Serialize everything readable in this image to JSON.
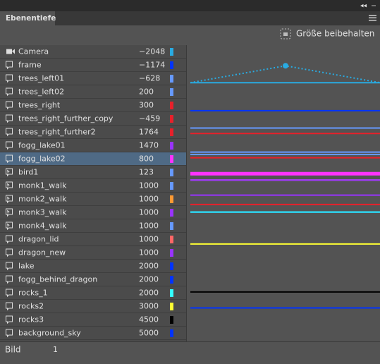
{
  "panel": {
    "tab": "Ebenentiefe",
    "button": "Größe beibehalten",
    "layers": [
      {
        "kind": "camera",
        "name": "Camera",
        "depth": -2048,
        "depth_label": "−2048",
        "color": "#29abe2"
      },
      {
        "kind": "layer",
        "name": "frame",
        "depth": -1174,
        "depth_label": "−1174",
        "color": "#0033ff"
      },
      {
        "kind": "layer",
        "name": "trees_left01",
        "depth": -628,
        "depth_label": "−628",
        "color": "#6699ff"
      },
      {
        "kind": "layer",
        "name": "trees_left02",
        "depth": 200,
        "color": "#6699ff"
      },
      {
        "kind": "layer",
        "name": "trees_right",
        "depth": 300,
        "color": "#e8202a"
      },
      {
        "kind": "layer",
        "name": "trees_right_further_copy",
        "depth": -459,
        "depth_label": "−459",
        "color": "#e8202a"
      },
      {
        "kind": "layer",
        "name": "trees_right_further2",
        "depth": 1764,
        "color": "#e8202a"
      },
      {
        "kind": "layer",
        "name": "fogg_lake01",
        "depth": 1470,
        "color": "#9933ff"
      },
      {
        "kind": "layer",
        "name": "fogg_lake02",
        "depth": 800,
        "color": "#ff33ff",
        "selected": true
      },
      {
        "kind": "symbol",
        "name": "bird1",
        "depth": 123,
        "color": "#6699ff"
      },
      {
        "kind": "symbol",
        "name": "monk1_walk",
        "depth": 1000,
        "color": "#6699ff"
      },
      {
        "kind": "symbol",
        "name": "monk2_walk",
        "depth": 1000,
        "color": "#ff9933"
      },
      {
        "kind": "symbol",
        "name": "monk3_walk",
        "depth": 1000,
        "color": "#9933ff"
      },
      {
        "kind": "symbol",
        "name": "monk4_walk",
        "depth": 1000,
        "color": "#6699ff"
      },
      {
        "kind": "layer",
        "name": "dragon_lid",
        "depth": 1000,
        "color": "#ff6666"
      },
      {
        "kind": "layer",
        "name": "dragon_new",
        "depth": 1000,
        "color": "#9933ff"
      },
      {
        "kind": "layer",
        "name": "lake",
        "depth": 2000,
        "color": "#0033ff"
      },
      {
        "kind": "layer",
        "name": "fogg_behind_dragon",
        "depth": 2000,
        "color": "#0033ff"
      },
      {
        "kind": "layer",
        "name": "rocks_1",
        "depth": 2000,
        "color": "#33ffff"
      },
      {
        "kind": "layer",
        "name": "rocks2",
        "depth": 3000,
        "color": "#ffff33"
      },
      {
        "kind": "layer",
        "name": "rocks3",
        "depth": 4500,
        "color": "#000000"
      },
      {
        "kind": "layer",
        "name": "background_sky",
        "depth": 5000,
        "color": "#0033ff"
      }
    ],
    "footer": {
      "label": "Bild",
      "value": "1"
    }
  }
}
